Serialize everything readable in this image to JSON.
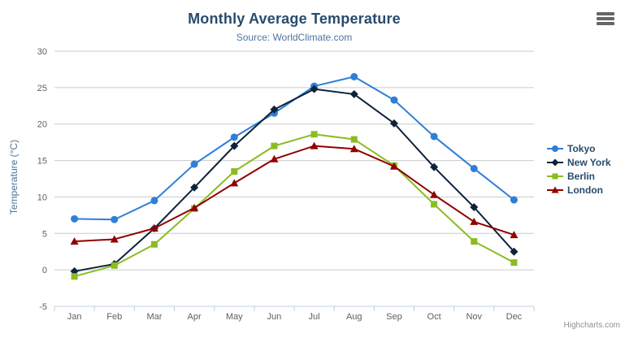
{
  "chart_data": {
    "type": "line",
    "title": "Monthly Average Temperature",
    "subtitle": "Source: WorldClimate.com",
    "xlabel": "",
    "ylabel": "Temperature (°C)",
    "categories": [
      "Jan",
      "Feb",
      "Mar",
      "Apr",
      "May",
      "Jun",
      "Jul",
      "Aug",
      "Sep",
      "Oct",
      "Nov",
      "Dec"
    ],
    "ylim": [
      -5,
      30
    ],
    "yticks": [
      -5,
      0,
      5,
      10,
      15,
      20,
      25,
      30
    ],
    "grid": true,
    "legend_position": "right",
    "series": [
      {
        "name": "Tokyo",
        "color": "#2f7ed8",
        "symbol": "circle",
        "values": [
          7.0,
          6.9,
          9.5,
          14.5,
          18.2,
          21.5,
          25.2,
          26.5,
          23.3,
          18.3,
          13.9,
          9.6
        ]
      },
      {
        "name": "New York",
        "color": "#0d233a",
        "symbol": "diamond",
        "values": [
          -0.2,
          0.8,
          5.7,
          11.3,
          17.0,
          22.0,
          24.8,
          24.1,
          20.1,
          14.1,
          8.6,
          2.5
        ]
      },
      {
        "name": "Berlin",
        "color": "#8bbc21",
        "symbol": "square",
        "values": [
          -0.9,
          0.6,
          3.5,
          8.4,
          13.5,
          17.0,
          18.6,
          17.9,
          14.3,
          9.0,
          3.9,
          1.0
        ]
      },
      {
        "name": "London",
        "color": "#910000",
        "symbol": "triangle",
        "values": [
          3.9,
          4.2,
          5.7,
          8.5,
          11.9,
          15.2,
          17.0,
          16.6,
          14.2,
          10.3,
          6.6,
          4.8
        ]
      }
    ]
  },
  "colors": {
    "title": "#274b6d",
    "subtitle": "#4d759e",
    "axis_label": "#606060",
    "axis_line": "#c0d0e0",
    "gridline": "#cccccc",
    "legend_text": "#274b6d",
    "credit_text": "#909090"
  },
  "menu_icon": "hamburger-menu",
  "credit": "Highcharts.com"
}
